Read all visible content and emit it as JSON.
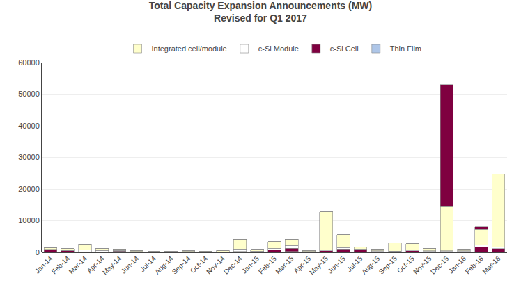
{
  "chart_data": {
    "type": "bar",
    "title": "Total Capacity Expansion Announcements (MW)",
    "subtitle": "Revised for Q1 2017",
    "stacked": true,
    "grid": true,
    "legend": "top",
    "categories": [
      "Jan-14",
      "Feb-14",
      "Mar-14",
      "Apr-14",
      "May-14",
      "Jun-14",
      "Jul-14",
      "Aug-14",
      "Sep-14",
      "Oct-14",
      "Nov-14",
      "Dec-14",
      "Jan-15",
      "Feb-15",
      "Mar-15",
      "Apr-15",
      "May-15",
      "Jun-15",
      "Jul-15",
      "Aug-15",
      "Sep-15",
      "Oct-15",
      "Nov-15",
      "Dec-15",
      "Jan-16",
      "Feb-16",
      "Mar-16"
    ],
    "series": [
      {
        "name": "Thin Film",
        "color": "#aec6e8",
        "values": [
          200,
          200,
          0,
          0,
          200,
          0,
          0,
          0,
          0,
          0,
          0,
          0,
          0,
          200,
          300,
          0,
          0,
          0,
          200,
          0,
          0,
          200,
          0,
          0,
          0,
          200,
          0
        ]
      },
      {
        "name": "c-Si Cell",
        "color": "#7f0040",
        "values": [
          500,
          300,
          200,
          100,
          200,
          200,
          100,
          100,
          200,
          100,
          100,
          300,
          200,
          500,
          1000,
          200,
          500,
          1000,
          500,
          300,
          300,
          300,
          300,
          300,
          300,
          1500,
          1200
        ]
      },
      {
        "name": "c-Si Module",
        "color": "#ffffff",
        "values": [
          200,
          100,
          600,
          500,
          200,
          100,
          100,
          100,
          100,
          100,
          100,
          800,
          200,
          600,
          800,
          100,
          300,
          500,
          300,
          200,
          100,
          200,
          200,
          200,
          200,
          500,
          500
        ]
      },
      {
        "name": "Integrated cell/module",
        "color": "#ffffcc",
        "values": [
          500,
          600,
          1800,
          600,
          400,
          300,
          100,
          100,
          200,
          200,
          400,
          3000,
          500,
          2000,
          2000,
          300,
          12000,
          4000,
          600,
          600,
          2500,
          2000,
          800,
          14000,
          500,
          5000,
          23000
        ]
      },
      {
        "color": "#7f0040",
        "values": [
          0,
          0,
          0,
          0,
          0,
          0,
          0,
          0,
          0,
          0,
          0,
          0,
          0,
          0,
          0,
          0,
          0,
          0,
          0,
          0,
          0,
          0,
          0,
          38500,
          0,
          1000,
          0
        ]
      }
    ],
    "ylim": [
      0,
      60000
    ],
    "yticks": [
      0,
      10000,
      20000,
      30000,
      40000,
      50000,
      60000
    ]
  }
}
